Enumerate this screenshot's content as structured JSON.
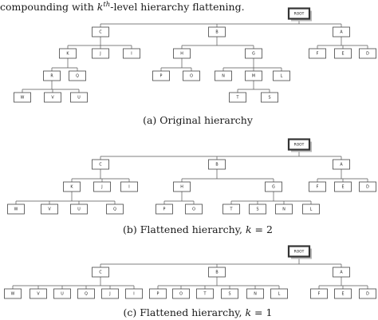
{
  "intro": {
    "pre": "compounding with ",
    "k": "k",
    "sup": "th",
    "post": "-level hierarchy flattening."
  },
  "diagrams": [
    {
      "id": "a",
      "caption": "(a) Original hierarchy",
      "tree": {
        "label": "ROOT",
        "root": true,
        "children": [
          {
            "label": "C",
            "children": [
              {
                "label": "K",
                "children": [
                  {
                    "label": "R",
                    "children": [
                      {
                        "label": "W"
                      },
                      {
                        "label": "V"
                      },
                      {
                        "label": "U"
                      }
                    ]
                  },
                  {
                    "label": "Q"
                  }
                ]
              },
              {
                "label": "J"
              },
              {
                "label": "I"
              }
            ]
          },
          {
            "label": "B",
            "children": [
              {
                "label": "H",
                "children": [
                  {
                    "label": "P"
                  },
                  {
                    "label": "O"
                  }
                ]
              },
              {
                "label": "G",
                "children": [
                  {
                    "label": "N"
                  },
                  {
                    "label": "M",
                    "children": [
                      {
                        "label": "T"
                      },
                      {
                        "label": "S"
                      }
                    ]
                  },
                  {
                    "label": "L"
                  }
                ]
              }
            ]
          },
          {
            "label": "A",
            "children": [
              {
                "label": "F"
              },
              {
                "label": "E"
              },
              {
                "label": "D"
              }
            ]
          }
        ]
      }
    },
    {
      "id": "b",
      "caption": "(b) Flattened hierarchy, k = 2",
      "tree": {
        "label": "ROOT",
        "root": true,
        "children": [
          {
            "label": "C",
            "children": [
              {
                "label": "K",
                "children": [
                  {
                    "label": "W"
                  },
                  {
                    "label": "V"
                  },
                  {
                    "label": "U"
                  },
                  {
                    "label": "Q"
                  }
                ]
              },
              {
                "label": "J"
              },
              {
                "label": "I"
              }
            ]
          },
          {
            "label": "B",
            "children": [
              {
                "label": "H",
                "children": [
                  {
                    "label": "P"
                  },
                  {
                    "label": "O"
                  }
                ]
              },
              {
                "label": "G",
                "children": [
                  {
                    "label": "T"
                  },
                  {
                    "label": "S"
                  },
                  {
                    "label": "N"
                  },
                  {
                    "label": "L"
                  }
                ]
              }
            ]
          },
          {
            "label": "A",
            "children": [
              {
                "label": "F"
              },
              {
                "label": "E"
              },
              {
                "label": "D"
              }
            ]
          }
        ]
      }
    },
    {
      "id": "c",
      "caption": "(c) Flattened hierarchy, k = 1",
      "tree": {
        "label": "ROOT",
        "root": true,
        "children": [
          {
            "label": "C",
            "children": [
              {
                "label": "W"
              },
              {
                "label": "V"
              },
              {
                "label": "U"
              },
              {
                "label": "Q"
              },
              {
                "label": "J"
              },
              {
                "label": "I"
              }
            ]
          },
          {
            "label": "B",
            "children": [
              {
                "label": "P"
              },
              {
                "label": "O"
              },
              {
                "label": "T"
              },
              {
                "label": "S"
              },
              {
                "label": "N"
              },
              {
                "label": "L"
              }
            ]
          },
          {
            "label": "A",
            "children": [
              {
                "label": "F"
              },
              {
                "label": "E"
              },
              {
                "label": "D"
              }
            ]
          }
        ]
      }
    }
  ]
}
